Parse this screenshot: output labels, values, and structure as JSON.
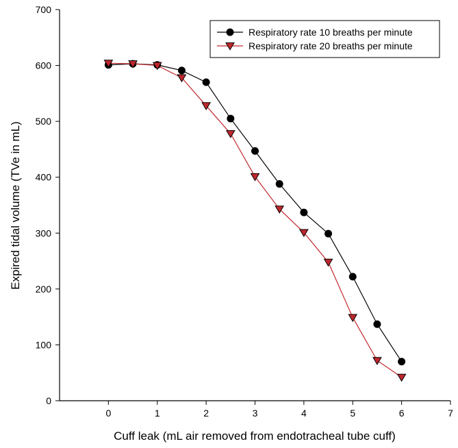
{
  "chart_data": {
    "type": "line",
    "title": "",
    "xlabel": "Cuff leak (mL air removed from endotracheal tube cuff)",
    "ylabel": "Expired tidal volume (TVe in mL)",
    "xlim": [
      -1,
      7
    ],
    "ylim": [
      0,
      700
    ],
    "xticks": [
      0,
      1,
      2,
      3,
      4,
      5,
      6,
      7
    ],
    "yticks": [
      0,
      100,
      200,
      300,
      400,
      500,
      600,
      700
    ],
    "grid": false,
    "legend_position": "top-right",
    "series": [
      {
        "name": "Respiratory rate 10 breaths per minute",
        "marker": "circle",
        "color": "#000000",
        "marker_color": "#000000",
        "x": [
          0,
          0.5,
          1,
          1.5,
          2,
          2.5,
          3,
          3.5,
          4,
          4.5,
          5,
          5.5,
          6
        ],
        "y": [
          601,
          603,
          601,
          591,
          570,
          505,
          447,
          388,
          337,
          299,
          222,
          137,
          70
        ]
      },
      {
        "name": "Respiratory rate 20 breaths per minute",
        "marker": "triangle-down",
        "color": "#c0272d",
        "marker_color": "#c0272d",
        "x": [
          0,
          0.5,
          1,
          1.5,
          2,
          2.5,
          3,
          3.5,
          4,
          4.5,
          5,
          5.5,
          6
        ],
        "y": [
          604,
          603,
          600,
          578,
          528,
          478,
          401,
          343,
          301,
          248,
          149,
          72,
          42
        ]
      }
    ]
  }
}
